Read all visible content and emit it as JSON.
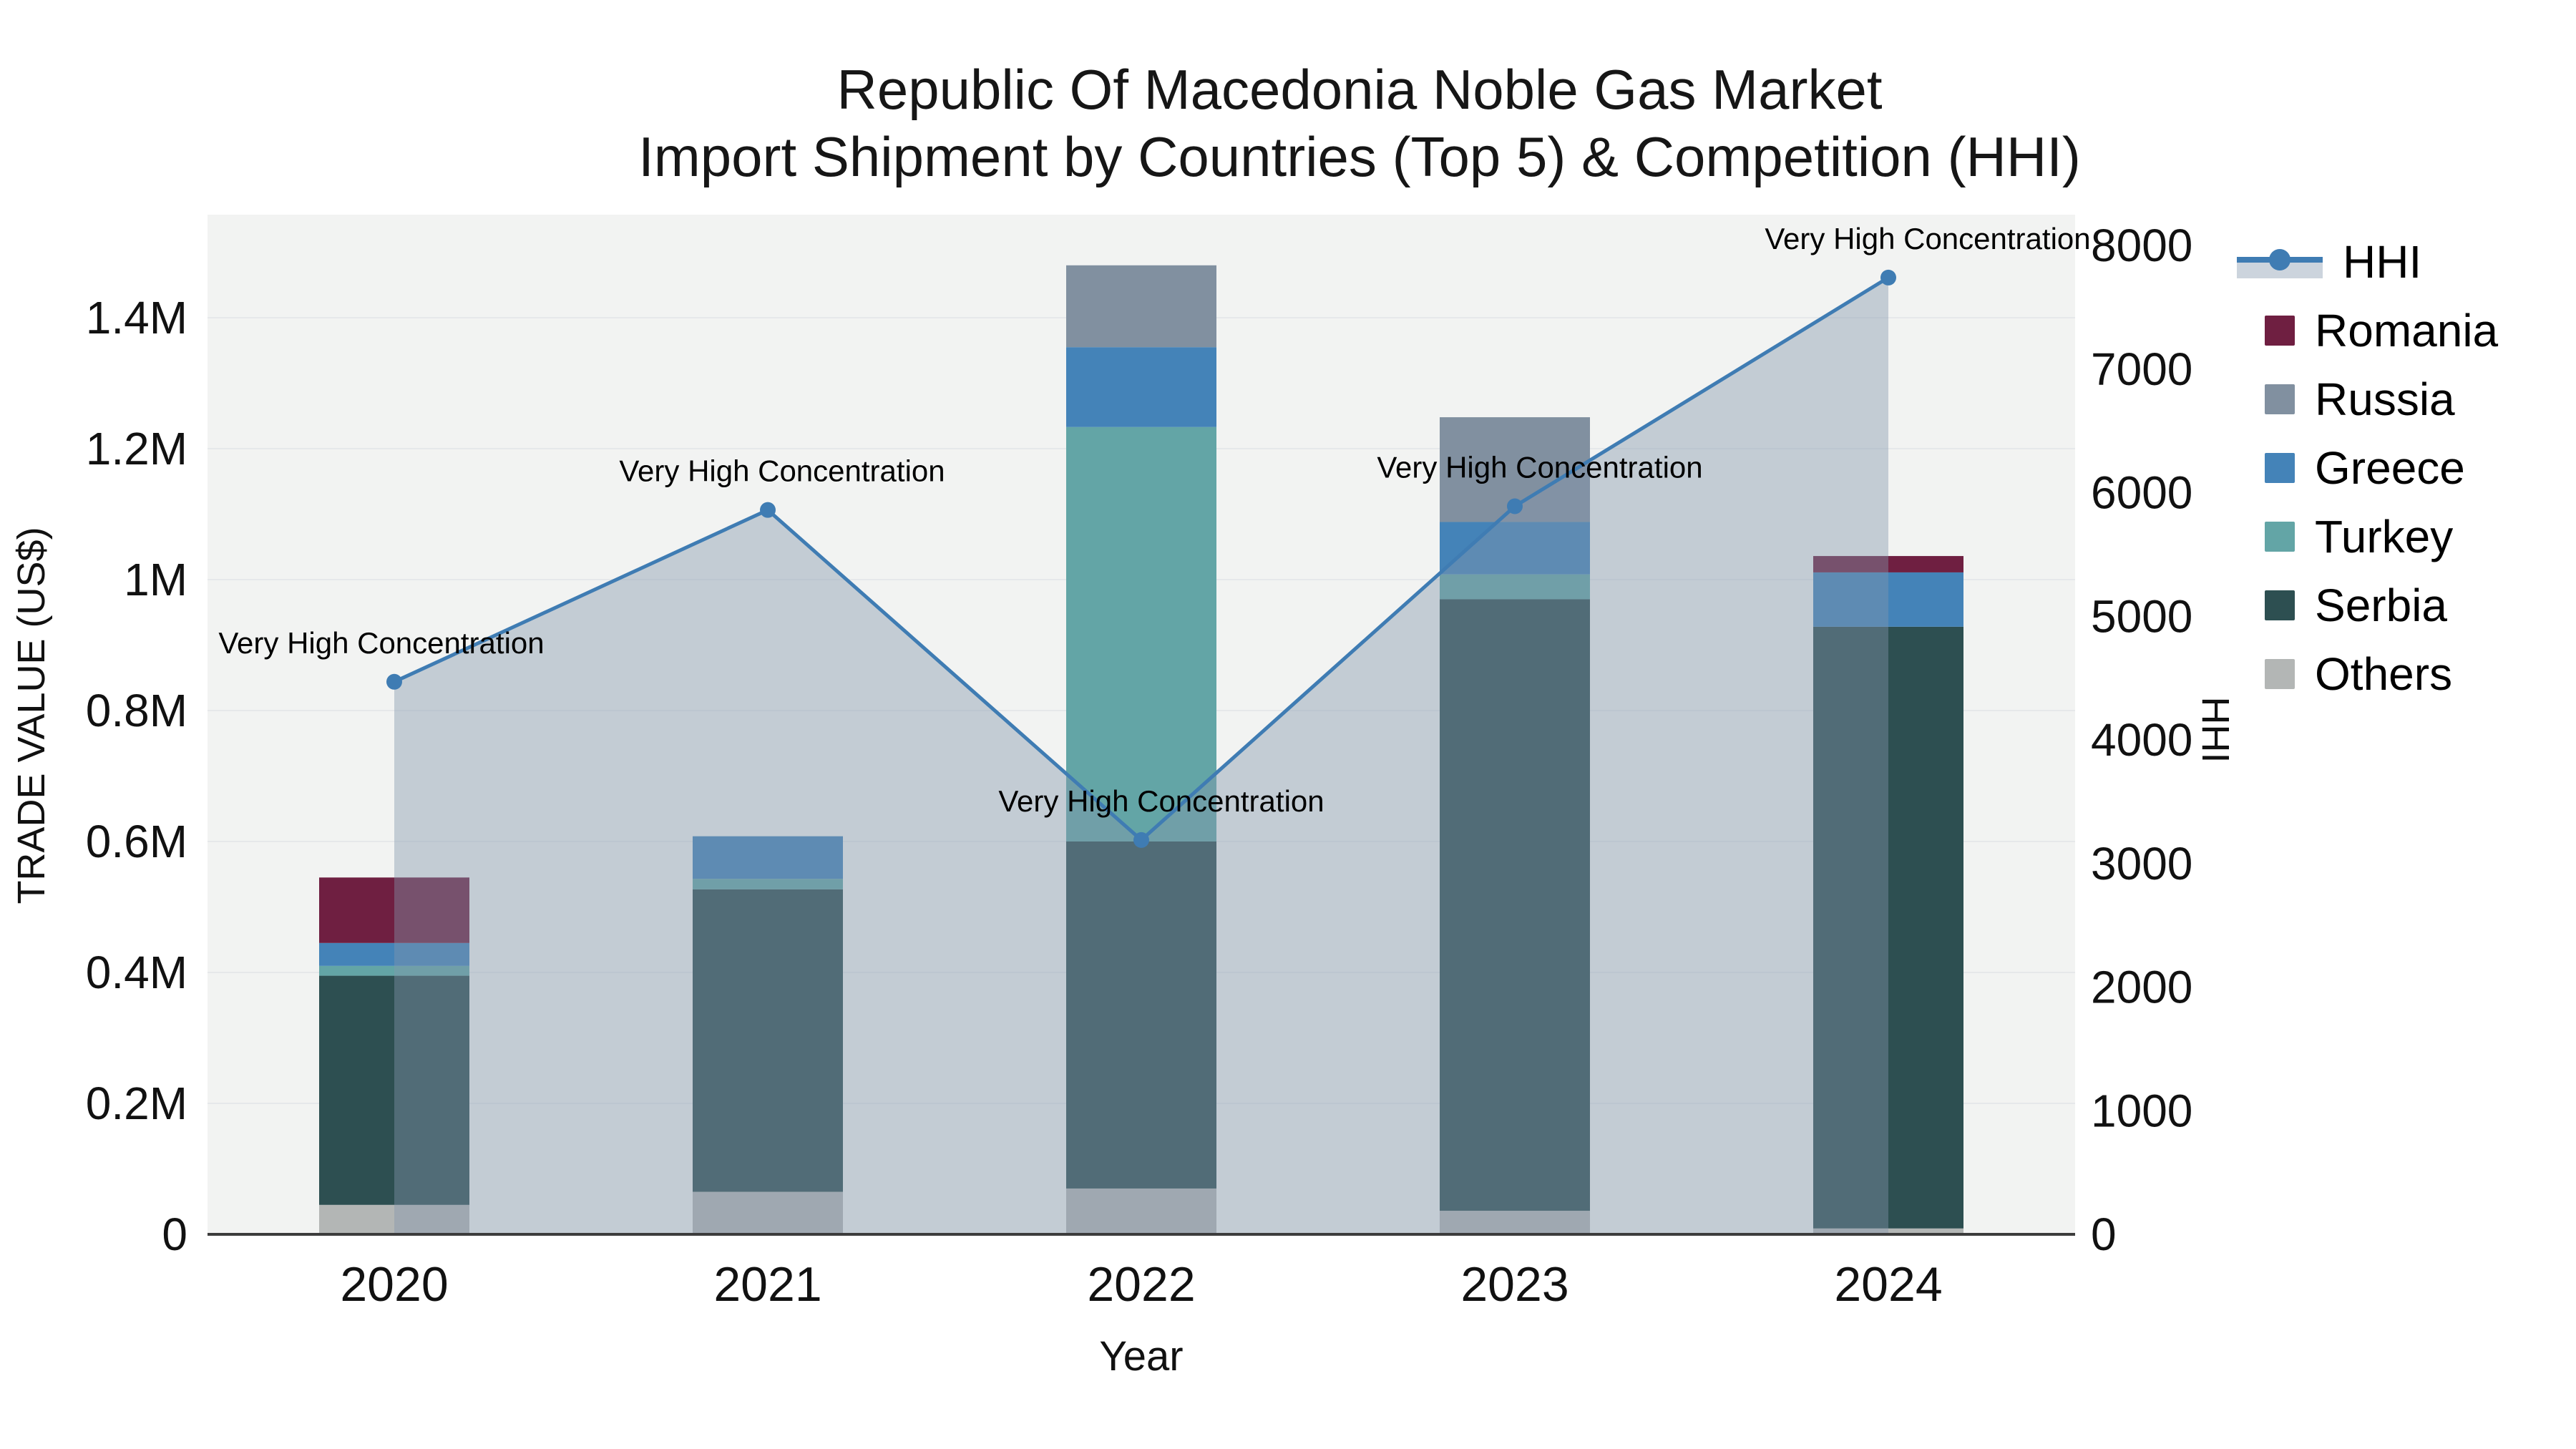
{
  "title": {
    "line1": "Republic Of Macedonia Noble Gas Market",
    "line2": "Import Shipment by Countries (Top 5) & Competition (HHI)"
  },
  "axes": {
    "left_label": "TRADE VALUE (US$)",
    "right_label": "HHI",
    "x_label": "Year",
    "left_ticks": [
      "0",
      "0.2M",
      "0.4M",
      "0.6M",
      "0.8M",
      "1M",
      "1.2M",
      "1.4M"
    ],
    "right_ticks": [
      "0",
      "1000",
      "2000",
      "3000",
      "4000",
      "5000",
      "6000",
      "7000",
      "8000"
    ]
  },
  "legend": {
    "items": [
      {
        "id": "hhi",
        "label": "HHI",
        "type": "line"
      },
      {
        "id": "romania",
        "label": "Romania",
        "type": "swatch",
        "color": "#6f1f41"
      },
      {
        "id": "russia",
        "label": "Russia",
        "type": "swatch",
        "color": "#8190a0"
      },
      {
        "id": "greece",
        "label": "Greece",
        "type": "swatch",
        "color": "#4483b8"
      },
      {
        "id": "turkey",
        "label": "Turkey",
        "type": "swatch",
        "color": "#63a5a6"
      },
      {
        "id": "serbia",
        "label": "Serbia",
        "type": "swatch",
        "color": "#2d4f51"
      },
      {
        "id": "others",
        "label": "Others",
        "type": "swatch",
        "color": "#b3b6b5"
      }
    ]
  },
  "colors": {
    "hhi_line": "#3f7cb3",
    "hhi_area": "rgba(131,149,171,0.42)",
    "hhi_legend_band": "#ccd4dd",
    "plot_bg": "#f2f3f2",
    "gridline": "#e6e8ea",
    "axis_line": "#3c3c3c",
    "tick_text": "#111111",
    "annotation_text": "#000000"
  },
  "chart_data": {
    "type": "bar+line",
    "title": "Republic Of Macedonia Noble Gas Market — Import Shipment by Countries (Top 5) & Competition (HHI)",
    "categories": [
      "2020",
      "2021",
      "2022",
      "2023",
      "2024"
    ],
    "bar_unit": "million US$",
    "stack_order_bottom_to_top": [
      "Others",
      "Serbia",
      "Turkey",
      "Greece",
      "Russia",
      "Romania"
    ],
    "series": [
      {
        "name": "Romania",
        "color": "#6f1f41",
        "values": [
          0.1,
          0,
          0,
          0,
          0.025
        ]
      },
      {
        "name": "Russia",
        "color": "#8190a0",
        "values": [
          0,
          0,
          0.125,
          0.16,
          0
        ]
      },
      {
        "name": "Greece",
        "color": "#4483b8",
        "values": [
          0.035,
          0.065,
          0.122,
          0.08,
          0.083
        ]
      },
      {
        "name": "Turkey",
        "color": "#63a5a6",
        "values": [
          0.015,
          0.016,
          0.633,
          0.038,
          0
        ]
      },
      {
        "name": "Serbia",
        "color": "#2d4f51",
        "values": [
          0.35,
          0.462,
          0.53,
          0.934,
          0.919
        ]
      },
      {
        "name": "Others",
        "color": "#b3b6b5",
        "values": [
          0.045,
          0.065,
          0.07,
          0.036,
          0.009
        ]
      }
    ],
    "bar_totals": [
      0.545,
      0.608,
      1.48,
      1.248,
      1.036
    ],
    "line_series": {
      "name": "HHI",
      "axis": "right",
      "values": [
        4470,
        5860,
        3190,
        5890,
        7740
      ]
    },
    "annotations": [
      {
        "x": "2020",
        "text": "Very High Concentration"
      },
      {
        "x": "2021",
        "text": "Very High Concentration"
      },
      {
        "x": "2022",
        "text": "Very High Concentration"
      },
      {
        "x": "2023",
        "text": "Very High Concentration"
      },
      {
        "x": "2024",
        "text": "Very High Concentration"
      }
    ],
    "left_axis": {
      "label": "TRADE VALUE (US$)",
      "min": 0,
      "max": 1.557,
      "tick_step": 0.2,
      "tick_max": 1.4,
      "unit": "M"
    },
    "right_axis": {
      "label": "HHI",
      "min": 0,
      "max": 8249,
      "tick_step": 1000,
      "tick_max": 8000
    },
    "x_axis": {
      "label": "Year"
    },
    "grid": true,
    "legend_position": "right"
  },
  "layout_values": {
    "annotation_dx": [
      -18,
      20,
      28,
      35,
      55
    ]
  }
}
